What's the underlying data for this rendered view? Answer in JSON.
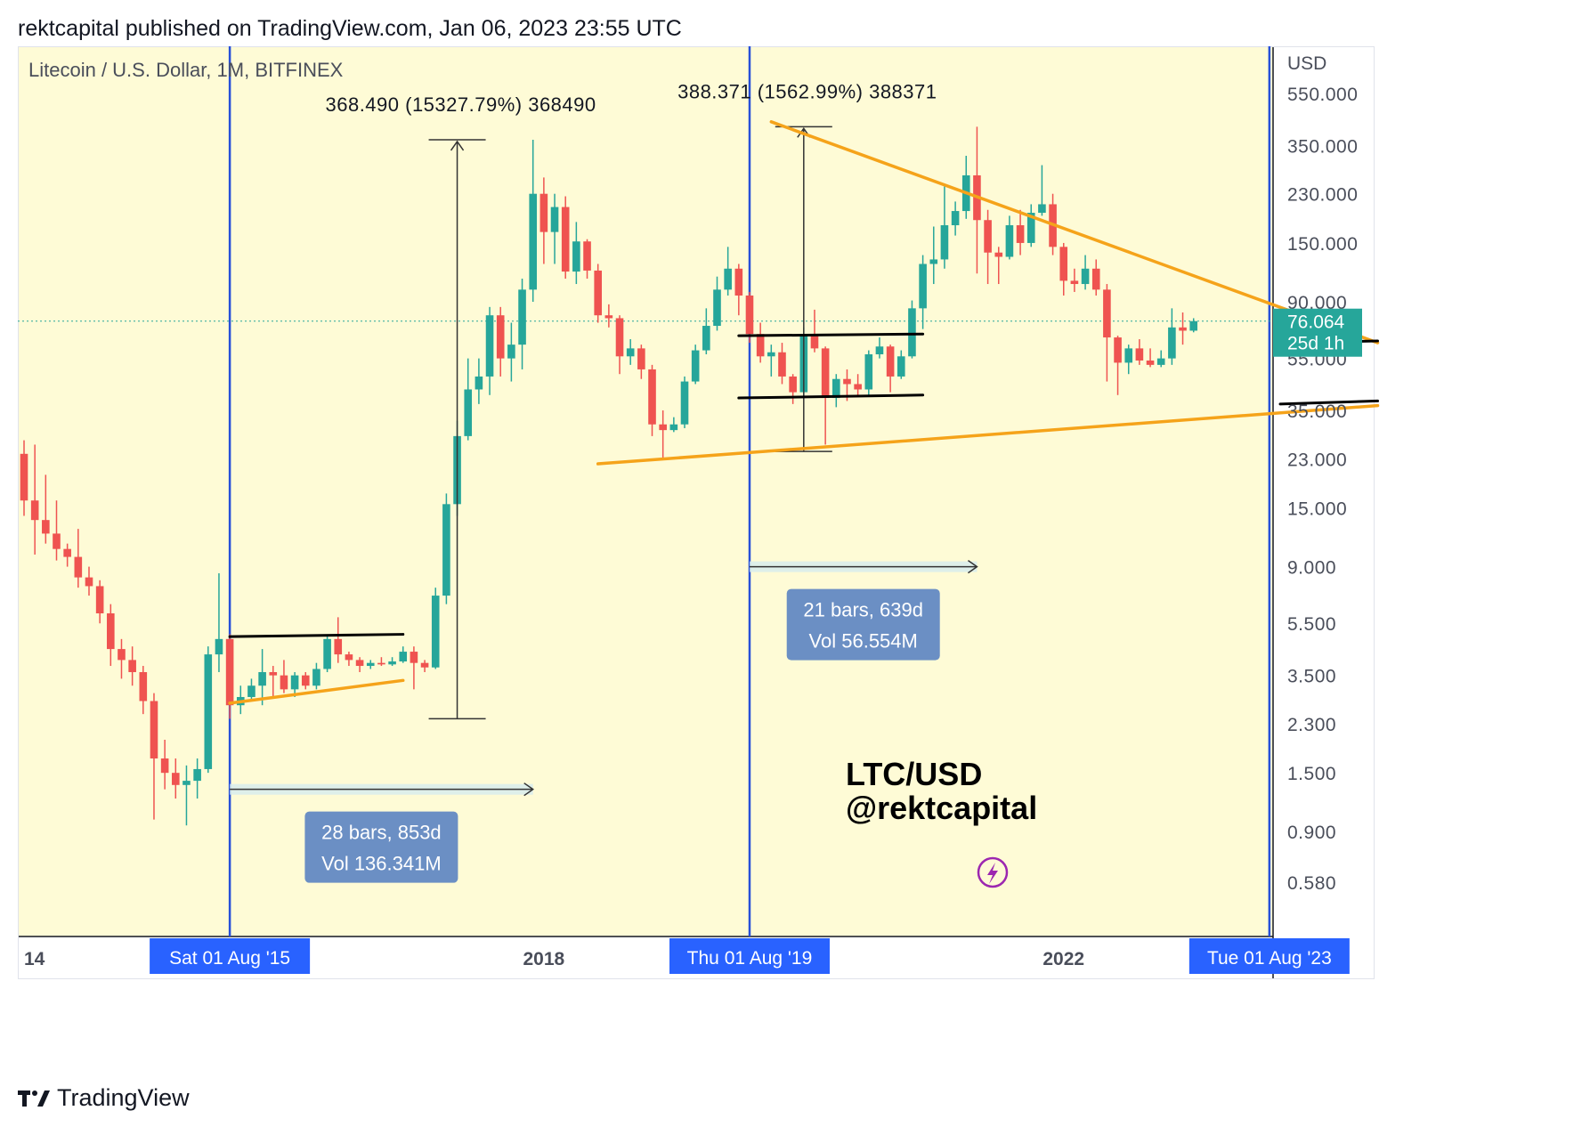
{
  "header": {
    "published": "rektcapital published on TradingView.com, Jan 06, 2023 23:55 UTC"
  },
  "brand": {
    "name": "TradingView"
  },
  "colors": {
    "background": "#fefbd6",
    "up": "#26a69a",
    "down": "#ef5350",
    "vertical_line": "#2750d9",
    "trend_orange": "#f5a31a",
    "range_black": "#000000",
    "price_badge": "#26a69a",
    "date_badge": "#2962ff",
    "bars_box": "#6b8fc4",
    "lightning": "#9c27b0"
  },
  "chart_data": {
    "type": "candlestick",
    "symbol": "Litecoin / U.S. Dollar, 1M, BITFINEX",
    "scale": "log",
    "currency_label": "USD",
    "y_ticks": [
      550,
      350,
      230,
      150,
      90,
      55,
      35,
      23,
      15,
      9,
      5.5,
      3.5,
      2.3,
      1.5,
      0.9,
      0.58
    ],
    "y_tick_labels": [
      "550.000",
      "350.000",
      "230.000",
      "150.000",
      "90.000",
      "55.000",
      "35.000",
      "23.000",
      "15.000",
      "9.000",
      "5.500",
      "3.500",
      "2.300",
      "1.500",
      "0.900",
      "0.580"
    ],
    "x_labels": [
      {
        "label": "14",
        "date": "2014-01"
      },
      {
        "label": "2018",
        "date": "2018-01"
      },
      {
        "label": "2022",
        "date": "2022-01"
      }
    ],
    "date_badges": [
      {
        "label": "Sat 01 Aug '15",
        "date": "2015-08"
      },
      {
        "label": "Thu 01 Aug '19",
        "date": "2019-08"
      },
      {
        "label": "Tue 01 Aug '23",
        "date": "2023-08"
      }
    ],
    "vertical_lines": [
      "2015-08",
      "2019-08",
      "2023-08"
    ],
    "last_price": {
      "value": "76.064",
      "countdown": "25d 1h",
      "price": 76.064
    },
    "candles": [
      [
        "2014-01",
        24.0,
        27.0,
        14.0,
        16.0
      ],
      [
        "2014-02",
        16.0,
        26.0,
        10.0,
        13.5
      ],
      [
        "2014-03",
        13.5,
        20.0,
        11.0,
        12.0
      ],
      [
        "2014-04",
        12.0,
        16.0,
        9.5,
        10.5
      ],
      [
        "2014-05",
        10.5,
        11.0,
        9.0,
        9.8
      ],
      [
        "2014-06",
        9.8,
        12.5,
        7.5,
        8.2
      ],
      [
        "2014-07",
        8.2,
        9.0,
        7.0,
        7.6
      ],
      [
        "2014-08",
        7.6,
        8.0,
        5.5,
        6.0
      ],
      [
        "2014-09",
        6.0,
        6.5,
        3.8,
        4.4
      ],
      [
        "2014-10",
        4.4,
        4.8,
        3.4,
        4.0
      ],
      [
        "2014-11",
        4.0,
        4.5,
        3.2,
        3.6
      ],
      [
        "2014-12",
        3.6,
        3.8,
        2.5,
        2.8
      ],
      [
        "2015-01",
        2.8,
        3.0,
        1.0,
        1.7
      ],
      [
        "2015-02",
        1.7,
        2.0,
        1.3,
        1.5
      ],
      [
        "2015-03",
        1.5,
        1.7,
        1.2,
        1.35
      ],
      [
        "2015-04",
        1.35,
        1.6,
        0.95,
        1.4
      ],
      [
        "2015-05",
        1.4,
        1.7,
        1.2,
        1.55
      ],
      [
        "2015-06",
        1.55,
        4.5,
        1.5,
        4.2
      ],
      [
        "2015-07",
        4.2,
        8.5,
        3.6,
        4.8
      ],
      [
        "2015-08",
        4.8,
        5.0,
        2.4,
        2.7
      ],
      [
        "2015-09",
        2.7,
        3.2,
        2.5,
        2.9
      ],
      [
        "2015-10",
        2.9,
        3.4,
        2.8,
        3.2
      ],
      [
        "2015-11",
        3.2,
        4.4,
        2.7,
        3.6
      ],
      [
        "2015-12",
        3.6,
        3.8,
        2.9,
        3.5
      ],
      [
        "2016-01",
        3.5,
        4.0,
        3.0,
        3.1
      ],
      [
        "2016-02",
        3.1,
        3.6,
        2.9,
        3.5
      ],
      [
        "2016-03",
        3.5,
        3.6,
        3.1,
        3.2
      ],
      [
        "2016-04",
        3.2,
        3.9,
        3.1,
        3.7
      ],
      [
        "2016-05",
        3.7,
        5.0,
        3.6,
        4.8
      ],
      [
        "2016-06",
        4.8,
        5.8,
        3.9,
        4.2
      ],
      [
        "2016-07",
        4.2,
        4.3,
        3.8,
        4.0
      ],
      [
        "2016-08",
        4.0,
        4.1,
        3.6,
        3.8
      ],
      [
        "2016-09",
        3.8,
        4.0,
        3.7,
        3.9
      ],
      [
        "2016-10",
        3.9,
        4.1,
        3.8,
        3.85
      ],
      [
        "2016-11",
        3.85,
        4.1,
        3.8,
        3.95
      ],
      [
        "2016-12",
        3.95,
        4.5,
        3.9,
        4.3
      ],
      [
        "2017-01",
        4.3,
        4.5,
        3.1,
        3.9
      ],
      [
        "2017-02",
        3.9,
        4.0,
        3.6,
        3.75
      ],
      [
        "2017-03",
        3.75,
        7.5,
        3.7,
        7.0
      ],
      [
        "2017-04",
        7.0,
        17.0,
        6.5,
        15.5
      ],
      [
        "2017-05",
        15.5,
        32.0,
        14.0,
        28.0
      ],
      [
        "2017-06",
        28.0,
        55.0,
        27.0,
        42.0
      ],
      [
        "2017-07",
        42.0,
        55.0,
        37.0,
        47.0
      ],
      [
        "2017-08",
        47.0,
        86.0,
        40.0,
        80.0
      ],
      [
        "2017-09",
        80.0,
        86.0,
        47.0,
        55.0
      ],
      [
        "2017-10",
        55.0,
        75.0,
        45.0,
        62.0
      ],
      [
        "2017-11",
        62.0,
        110.0,
        50.0,
        100.0
      ],
      [
        "2017-12",
        100.0,
        368.0,
        90.0,
        230.0
      ],
      [
        "2018-01",
        230.0,
        265.0,
        125.0,
        165.0
      ],
      [
        "2018-02",
        165.0,
        230.0,
        125.0,
        205.0
      ],
      [
        "2018-03",
        205.0,
        225.0,
        110.0,
        117.0
      ],
      [
        "2018-04",
        117.0,
        180.0,
        105.0,
        152.0
      ],
      [
        "2018-05",
        152.0,
        155.0,
        110.0,
        118.0
      ],
      [
        "2018-06",
        118.0,
        125.0,
        75.0,
        80.0
      ],
      [
        "2018-07",
        80.0,
        88.0,
        72.0,
        78.0
      ],
      [
        "2018-08",
        78.0,
        80.0,
        48.0,
        56.0
      ],
      [
        "2018-09",
        56.0,
        65.0,
        52.0,
        60.0
      ],
      [
        "2018-10",
        60.0,
        62.0,
        46.0,
        50.0
      ],
      [
        "2018-11",
        50.0,
        52.0,
        28.0,
        31.0
      ],
      [
        "2018-12",
        31.0,
        35.0,
        23.0,
        29.5
      ],
      [
        "2019-01",
        29.5,
        33.0,
        29.0,
        31.0
      ],
      [
        "2019-02",
        31.0,
        47.0,
        30.0,
        45.0
      ],
      [
        "2019-03",
        45.0,
        62.0,
        44.0,
        59.0
      ],
      [
        "2019-04",
        59.0,
        85.0,
        57.0,
        73.0
      ],
      [
        "2019-05",
        73.0,
        112.0,
        70.0,
        100.0
      ],
      [
        "2019-06",
        100.0,
        145.0,
        95.0,
        120.0
      ],
      [
        "2019-07",
        120.0,
        125.0,
        80.0,
        95.0
      ],
      [
        "2019-08",
        95.0,
        98.0,
        63.0,
        68.0
      ],
      [
        "2019-09",
        68.0,
        75.0,
        53.0,
        56.0
      ],
      [
        "2019-10",
        56.0,
        62.0,
        47.0,
        58.0
      ],
      [
        "2019-11",
        58.0,
        63.0,
        44.0,
        47.0
      ],
      [
        "2019-12",
        47.0,
        48.0,
        37.0,
        41.0
      ],
      [
        "2020-01",
        41.0,
        72.0,
        39.0,
        68.0
      ],
      [
        "2020-02",
        68.0,
        84.0,
        58.0,
        60.0
      ],
      [
        "2020-03",
        60.0,
        61.0,
        26.0,
        39.0
      ],
      [
        "2020-04",
        39.0,
        48.0,
        36.0,
        46.0
      ],
      [
        "2020-05",
        46.0,
        50.0,
        38.0,
        44.0
      ],
      [
        "2020-06",
        44.0,
        48.0,
        40.0,
        42.0
      ],
      [
        "2020-07",
        42.0,
        59.0,
        40.0,
        57.0
      ],
      [
        "2020-08",
        57.0,
        66.0,
        55.0,
        61.0
      ],
      [
        "2020-09",
        61.0,
        62.0,
        41.0,
        47.0
      ],
      [
        "2020-10",
        47.0,
        59.0,
        46.0,
        56.0
      ],
      [
        "2020-11",
        56.0,
        91.0,
        55.0,
        85.0
      ],
      [
        "2020-12",
        85.0,
        135.0,
        71.0,
        125.0
      ],
      [
        "2021-01",
        125.0,
        173.0,
        105.0,
        130.0
      ],
      [
        "2021-02",
        130.0,
        245.0,
        120.0,
        175.0
      ],
      [
        "2021-03",
        175.0,
        215.0,
        160.0,
        198.0
      ],
      [
        "2021-04",
        198.0,
        320.0,
        185.0,
        270.0
      ],
      [
        "2021-05",
        270.0,
        412.0,
        115.0,
        183.0
      ],
      [
        "2021-06",
        183.0,
        200.0,
        105.0,
        138.0
      ],
      [
        "2021-07",
        138.0,
        145.0,
        105.0,
        133.0
      ],
      [
        "2021-08",
        133.0,
        190.0,
        130.0,
        175.0
      ],
      [
        "2021-09",
        175.0,
        200.0,
        135.0,
        150.0
      ],
      [
        "2021-10",
        150.0,
        210.0,
        145.0,
        195.0
      ],
      [
        "2021-11",
        195.0,
        295.0,
        190.0,
        210.0
      ],
      [
        "2021-12",
        210.0,
        230.0,
        135.0,
        145.0
      ],
      [
        "2022-01",
        145.0,
        150.0,
        95.0,
        108.0
      ],
      [
        "2022-02",
        108.0,
        120.0,
        98.0,
        105.0
      ],
      [
        "2022-03",
        105.0,
        135.0,
        100.0,
        120.0
      ],
      [
        "2022-04",
        120.0,
        130.0,
        95.0,
        100.0
      ],
      [
        "2022-05",
        100.0,
        105.0,
        45.0,
        66.0
      ],
      [
        "2022-06",
        66.0,
        67.0,
        40.0,
        53.0
      ],
      [
        "2022-07",
        53.0,
        62.0,
        48.0,
        60.0
      ],
      [
        "2022-08",
        60.0,
        65.0,
        52.0,
        54.0
      ],
      [
        "2022-09",
        54.0,
        60.0,
        51.0,
        52.0
      ],
      [
        "2022-10",
        52.0,
        59.0,
        51.0,
        55.0
      ],
      [
        "2022-11",
        55.0,
        85.0,
        52.0,
        72.0
      ],
      [
        "2022-12",
        72.0,
        82.0,
        62.0,
        70.0
      ],
      [
        "2023-01",
        70.0,
        78.0,
        69.0,
        76.064
      ]
    ],
    "price_ranges": [
      {
        "label": "368.490 (15327.79%) 368490",
        "x": "2017-05",
        "from": 2.4,
        "to": 368.0
      },
      {
        "label": "388.371 (1562.99%) 388371",
        "x": "2020-01",
        "from": 24.5,
        "to": 412.0
      }
    ],
    "date_ranges": [
      {
        "label1": "28 bars, 853d",
        "label2": "Vol 136.341M",
        "from": "2015-08",
        "to": "2017-12",
        "price": 1.3
      },
      {
        "label1": "21 bars, 639d",
        "label2": "Vol 56.554M",
        "from": "2019-08",
        "to": "2021-05",
        "price": 9.0
      }
    ],
    "trendlines": [
      {
        "color": "orange",
        "from": [
          "2015-08",
          2.75
        ],
        "to": [
          "2016-12",
          3.35
        ]
      },
      {
        "color": "orange",
        "from": [
          "2018-06",
          22.0
        ],
        "to": [
          "2024-06",
          36.5
        ]
      },
      {
        "color": "orange",
        "from": [
          "2019-10",
          430.0
        ],
        "to": [
          "2024-06",
          63.0
        ]
      },
      {
        "color": "black",
        "from": [
          "2015-08",
          4.9
        ],
        "to": [
          "2016-12",
          5.0
        ]
      },
      {
        "color": "black",
        "from": [
          "2019-07",
          67.0
        ],
        "to": [
          "2020-12",
          68.0
        ]
      },
      {
        "color": "black",
        "from": [
          "2019-07",
          39.0
        ],
        "to": [
          "2020-12",
          40.0
        ]
      },
      {
        "color": "black",
        "from": [
          "2023-09",
          63.0
        ],
        "to": [
          "2024-06",
          64.0
        ]
      },
      {
        "color": "black",
        "from": [
          "2023-09",
          37.0
        ],
        "to": [
          "2024-06",
          38.0
        ]
      }
    ],
    "watermark": {
      "line1": "LTC/USD",
      "line2": "@rektcapital"
    }
  }
}
